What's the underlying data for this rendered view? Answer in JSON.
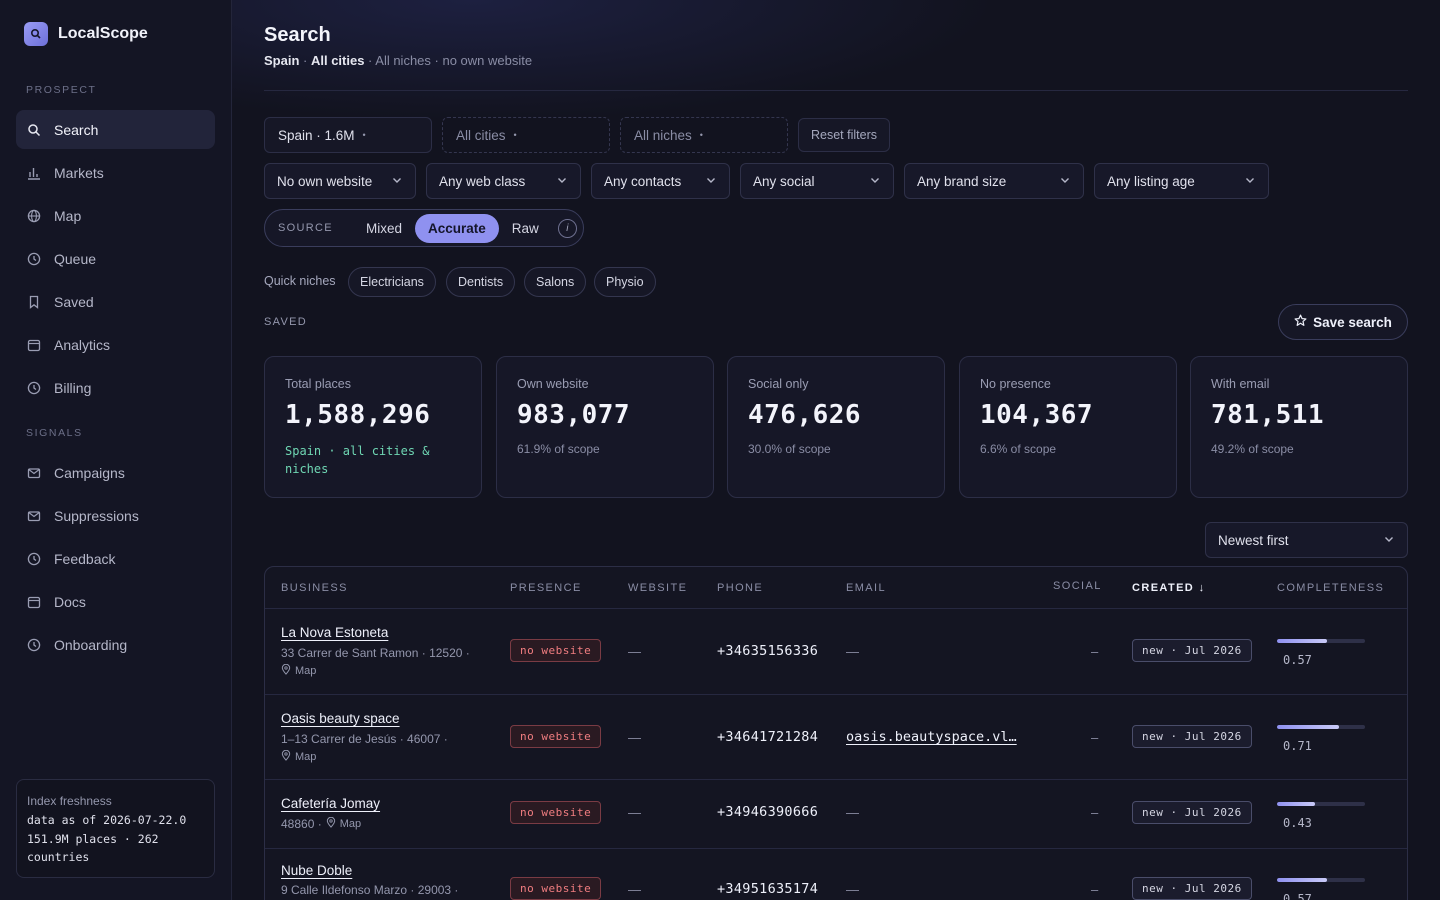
{
  "app": {
    "name": "LocalScope"
  },
  "sidebar": {
    "prospect_label": "PROSPECT",
    "signals_label": "SIGNALS",
    "prospect_items": [
      {
        "label": "Search",
        "icon": "search-icon"
      },
      {
        "label": "Markets",
        "icon": "bar-chart-icon"
      },
      {
        "label": "Map",
        "icon": "globe-icon"
      },
      {
        "label": "Queue",
        "icon": "clock-icon"
      },
      {
        "label": "Saved",
        "icon": "bookmark-icon"
      },
      {
        "label": "Analytics",
        "icon": "calendar-icon"
      },
      {
        "label": "Billing",
        "icon": "clock-icon"
      }
    ],
    "signal_items": [
      {
        "label": "Campaigns",
        "icon": "mail-icon"
      },
      {
        "label": "Suppressions",
        "icon": "mail-icon"
      },
      {
        "label": "Feedback",
        "icon": "clock-icon"
      },
      {
        "label": "Docs",
        "icon": "calendar-icon"
      },
      {
        "label": "Onboarding",
        "icon": "clock-icon"
      }
    ],
    "freshness": {
      "label": "Index freshness",
      "line1": "data as of 2026-07-22.0",
      "line2": "151.9M places · 262",
      "line3": "countries"
    }
  },
  "header": {
    "title": "Search",
    "crumb_country": "Spain",
    "crumb_sep1": " · ",
    "crumb_cities": "All cities",
    "crumb_rest": " · All niches · no own website"
  },
  "filters": {
    "country": "Spain · 1.6M",
    "cities": "All cities",
    "niches": "All niches",
    "dot": "•",
    "reset": "Reset filters",
    "selects": [
      "No own website",
      "Any web class",
      "Any contacts",
      "Any social",
      "Any brand size",
      "Any listing age"
    ]
  },
  "source": {
    "label": "SOURCE",
    "options": [
      "Mixed",
      "Accurate",
      "Raw"
    ],
    "selected": "Accurate",
    "info": "i"
  },
  "quick_niches": {
    "label": "Quick niches",
    "items": [
      "Electricians",
      "Dentists",
      "Salons",
      "Physio"
    ]
  },
  "saved": {
    "label": "SAVED",
    "save_button": "Save search"
  },
  "stats": [
    {
      "label": "Total places",
      "value": "1,588,296",
      "sub": "Spain · all cities & niches"
    },
    {
      "label": "Own website",
      "value": "983,077",
      "sub": "61.9% of scope"
    },
    {
      "label": "Social only",
      "value": "476,626",
      "sub": "30.0% of scope"
    },
    {
      "label": "No presence",
      "value": "104,367",
      "sub": "6.6% of scope"
    },
    {
      "label": "With email",
      "value": "781,511",
      "sub": "49.2% of scope"
    }
  ],
  "sort": {
    "value": "Newest first"
  },
  "table": {
    "columns": [
      "BUSINESS",
      "PRESENCE",
      "WEBSITE",
      "PHONE",
      "EMAIL",
      "SOCIAL",
      "CREATED ↓",
      "COMPLETENESS"
    ],
    "map_label": "Map",
    "dash": "—",
    "rows": [
      {
        "name": "La Nova Estoneta",
        "address": "33 Carrer de Sant Ramon · 12520 ·",
        "presence": "no website",
        "website": "—",
        "phone": "+34635156336",
        "email": "—",
        "social": "–",
        "created": "new · Jul 2026",
        "completeness": "0.57",
        "completeness_frac": 0.57
      },
      {
        "name": "Oasis beauty space",
        "address": "1–13 Carrer de Jesús · 46007 ·",
        "presence": "no website",
        "website": "—",
        "phone": "+34641721284",
        "email": "oasis.beautyspace.vl…",
        "social": "–",
        "created": "new · Jul 2026",
        "completeness": "0.71",
        "completeness_frac": 0.71
      },
      {
        "name": "Cafetería Jomay",
        "address": "48860 ·",
        "presence": "no website",
        "website": "—",
        "phone": "+34946390666",
        "email": "—",
        "social": "–",
        "created": "new · Jul 2026",
        "completeness": "0.43",
        "completeness_frac": 0.43
      },
      {
        "name": "Nube Doble",
        "address": "9 Calle Ildefonso Marzo · 29003 ·",
        "presence": "no website",
        "website": "—",
        "phone": "+34951635174",
        "email": "—",
        "social": "–",
        "created": "new · Jul 2026",
        "completeness": "0.57",
        "completeness_frac": 0.57
      }
    ]
  },
  "colors": {
    "accent": "#8f91f0",
    "background": "#12131f",
    "sidebar": "#141524",
    "danger": "#f07d80",
    "positive": "#6fd6b3"
  }
}
